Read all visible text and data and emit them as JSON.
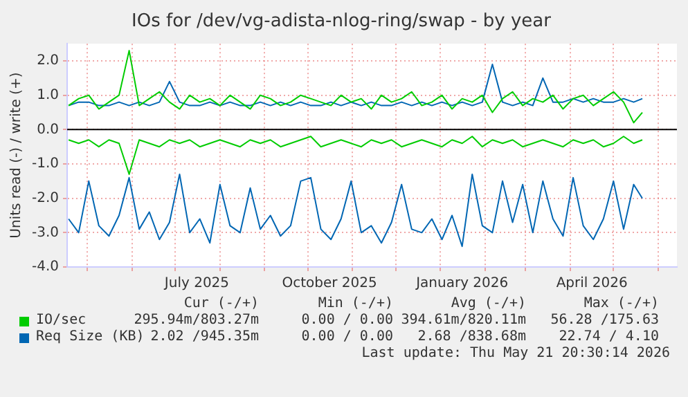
{
  "chart_data": {
    "type": "line",
    "title": "IOs for /dev/vg-adista-nlog-ring/swap - by year",
    "ylabel": "Units read (-) / write (+)",
    "x": [
      "2025-04-18",
      "2025-04-25",
      "2025-05-02",
      "2025-05-09",
      "2025-05-16",
      "2025-05-23",
      "2025-05-30",
      "2025-06-06",
      "2025-06-13",
      "2025-06-20",
      "2025-06-27",
      "2025-07-04",
      "2025-07-11",
      "2025-07-18",
      "2025-07-25",
      "2025-08-01",
      "2025-08-08",
      "2025-08-15",
      "2025-08-22",
      "2025-08-29",
      "2025-09-05",
      "2025-09-12",
      "2025-09-19",
      "2025-09-26",
      "2025-10-03",
      "2025-10-10",
      "2025-10-17",
      "2025-10-24",
      "2025-10-31",
      "2025-11-07",
      "2025-11-14",
      "2025-11-21",
      "2025-11-28",
      "2025-12-05",
      "2025-12-12",
      "2025-12-19",
      "2025-12-26",
      "2026-01-02",
      "2026-01-09",
      "2026-01-16",
      "2026-01-23",
      "2026-01-30",
      "2026-02-06",
      "2026-02-13",
      "2026-02-20",
      "2026-02-27",
      "2026-03-06",
      "2026-03-13",
      "2026-03-20",
      "2026-03-27",
      "2026-04-03",
      "2026-04-10",
      "2026-04-17",
      "2026-04-24",
      "2026-05-01",
      "2026-05-08",
      "2026-05-15",
      "2026-05-21"
    ],
    "series": [
      {
        "color": "#00cc00",
        "values": [
          -0.3,
          -0.4,
          -0.3,
          -0.5,
          -0.3,
          -0.4,
          -1.3,
          -0.3,
          -0.4,
          -0.5,
          -0.3,
          -0.4,
          -0.3,
          -0.5,
          -0.4,
          -0.3,
          -0.4,
          -0.5,
          -0.3,
          -0.4,
          -0.3,
          -0.5,
          -0.4,
          -0.3,
          -0.2,
          -0.5,
          -0.4,
          -0.3,
          -0.4,
          -0.5,
          -0.3,
          -0.4,
          -0.3,
          -0.5,
          -0.4,
          -0.3,
          -0.4,
          -0.5,
          -0.3,
          -0.4,
          -0.2,
          -0.5,
          -0.3,
          -0.4,
          -0.3,
          -0.5,
          -0.4,
          -0.3,
          -0.4,
          -0.5,
          -0.3,
          -0.4,
          -0.3,
          -0.5,
          -0.4,
          -0.2,
          -0.4,
          -0.3
        ]
      },
      {
        "name": "IO/sec",
        "color": "#00cc00",
        "values": [
          0.7,
          0.9,
          1.0,
          0.6,
          0.8,
          1.0,
          2.3,
          0.7,
          0.9,
          1.1,
          0.8,
          0.6,
          1.0,
          0.8,
          0.9,
          0.7,
          1.0,
          0.8,
          0.6,
          1.0,
          0.9,
          0.7,
          0.8,
          1.0,
          0.9,
          0.8,
          0.7,
          1.0,
          0.8,
          0.9,
          0.6,
          1.0,
          0.8,
          0.9,
          1.1,
          0.7,
          0.8,
          1.0,
          0.6,
          0.9,
          0.8,
          1.0,
          0.5,
          0.9,
          1.1,
          0.7,
          0.9,
          0.8,
          1.0,
          0.6,
          0.9,
          1.0,
          0.7,
          0.9,
          1.1,
          0.8,
          0.2,
          0.5
        ]
      },
      {
        "color": "#0066b3",
        "values": [
          -2.6,
          -3.0,
          -1.5,
          -2.8,
          -3.1,
          -2.5,
          -1.4,
          -2.9,
          -2.4,
          -3.2,
          -2.7,
          -1.3,
          -3.0,
          -2.6,
          -3.3,
          -1.6,
          -2.8,
          -3.0,
          -1.7,
          -2.9,
          -2.5,
          -3.1,
          -2.8,
          -1.5,
          -1.4,
          -2.9,
          -3.2,
          -2.6,
          -1.5,
          -3.0,
          -2.8,
          -3.3,
          -2.7,
          -1.6,
          -2.9,
          -3.0,
          -2.6,
          -3.2,
          -2.5,
          -3.4,
          -1.3,
          -2.8,
          -3.0,
          -1.5,
          -2.7,
          -1.6,
          -3.0,
          -1.5,
          -2.6,
          -3.1,
          -1.4,
          -2.8,
          -3.2,
          -2.6,
          -1.5,
          -2.9,
          -1.6,
          -2.0
        ]
      },
      {
        "name": "Req Size (KB)",
        "color": "#0066b3",
        "values": [
          0.7,
          0.8,
          0.8,
          0.7,
          0.7,
          0.8,
          0.7,
          0.8,
          0.7,
          0.8,
          1.4,
          0.8,
          0.7,
          0.7,
          0.8,
          0.7,
          0.8,
          0.7,
          0.7,
          0.8,
          0.7,
          0.8,
          0.7,
          0.8,
          0.7,
          0.7,
          0.8,
          0.7,
          0.8,
          0.7,
          0.8,
          0.7,
          0.7,
          0.8,
          0.7,
          0.8,
          0.7,
          0.8,
          0.7,
          0.8,
          0.7,
          0.8,
          1.9,
          0.8,
          0.7,
          0.8,
          0.7,
          1.5,
          0.8,
          0.8,
          0.9,
          0.8,
          0.9,
          0.8,
          0.8,
          0.9,
          0.8,
          0.9
        ]
      }
    ],
    "xlim": [
      "2025-04-17",
      "2026-06-14"
    ],
    "xticks": [
      {
        "value": "2025-05-01",
        "label": null
      },
      {
        "value": "2025-06-01",
        "label": null
      },
      {
        "value": "2025-07-01",
        "label": null
      },
      {
        "value": "2025-07-16",
        "label": "July 2025"
      },
      {
        "value": "2025-08-01",
        "label": null
      },
      {
        "value": "2025-09-01",
        "label": null
      },
      {
        "value": "2025-10-01",
        "label": null
      },
      {
        "value": "2025-10-16",
        "label": "October 2025"
      },
      {
        "value": "2025-11-01",
        "label": null
      },
      {
        "value": "2025-12-01",
        "label": null
      },
      {
        "value": "2026-01-01",
        "label": null
      },
      {
        "value": "2026-01-16",
        "label": "January 2026"
      },
      {
        "value": "2026-02-01",
        "label": null
      },
      {
        "value": "2026-03-01",
        "label": null
      },
      {
        "value": "2026-04-01",
        "label": null
      },
      {
        "value": "2026-04-16",
        "label": "April 2026"
      },
      {
        "value": "2026-05-01",
        "label": null
      },
      {
        "value": "2026-06-01",
        "label": null
      }
    ],
    "ylim": [
      -4,
      2.5
    ],
    "yticks": [
      {
        "value": -4,
        "label": "-4.0"
      },
      {
        "value": -3,
        "label": "-3.0"
      },
      {
        "value": -2,
        "label": "-2.0"
      },
      {
        "value": -1,
        "label": "-1.0"
      },
      {
        "value": 0,
        "label": "0.0"
      },
      {
        "value": 1,
        "label": "1.0"
      },
      {
        "value": 2,
        "label": "2.0"
      }
    ],
    "ref_lines": [
      {
        "axis": "y",
        "value": 0,
        "color": "#000000"
      }
    ],
    "grid": true,
    "legend": "bottom",
    "marker": "none",
    "line_style": "solid",
    "annotations": [
      "Cur (-/+)",
      "Min (-/+)",
      "Avg (-/+)",
      "Max (-/+)",
      "295.94m/803.27m",
      "0.00 / 0.00",
      "394.61m/820.11m",
      "56.28 /175.63",
      "2.02 /945.35m",
      "0.00 / 0.00",
      "2.68 /838.68m",
      "22.74 / 4.10",
      "Last update: Thu May 21 20:30:14 2026"
    ]
  }
}
